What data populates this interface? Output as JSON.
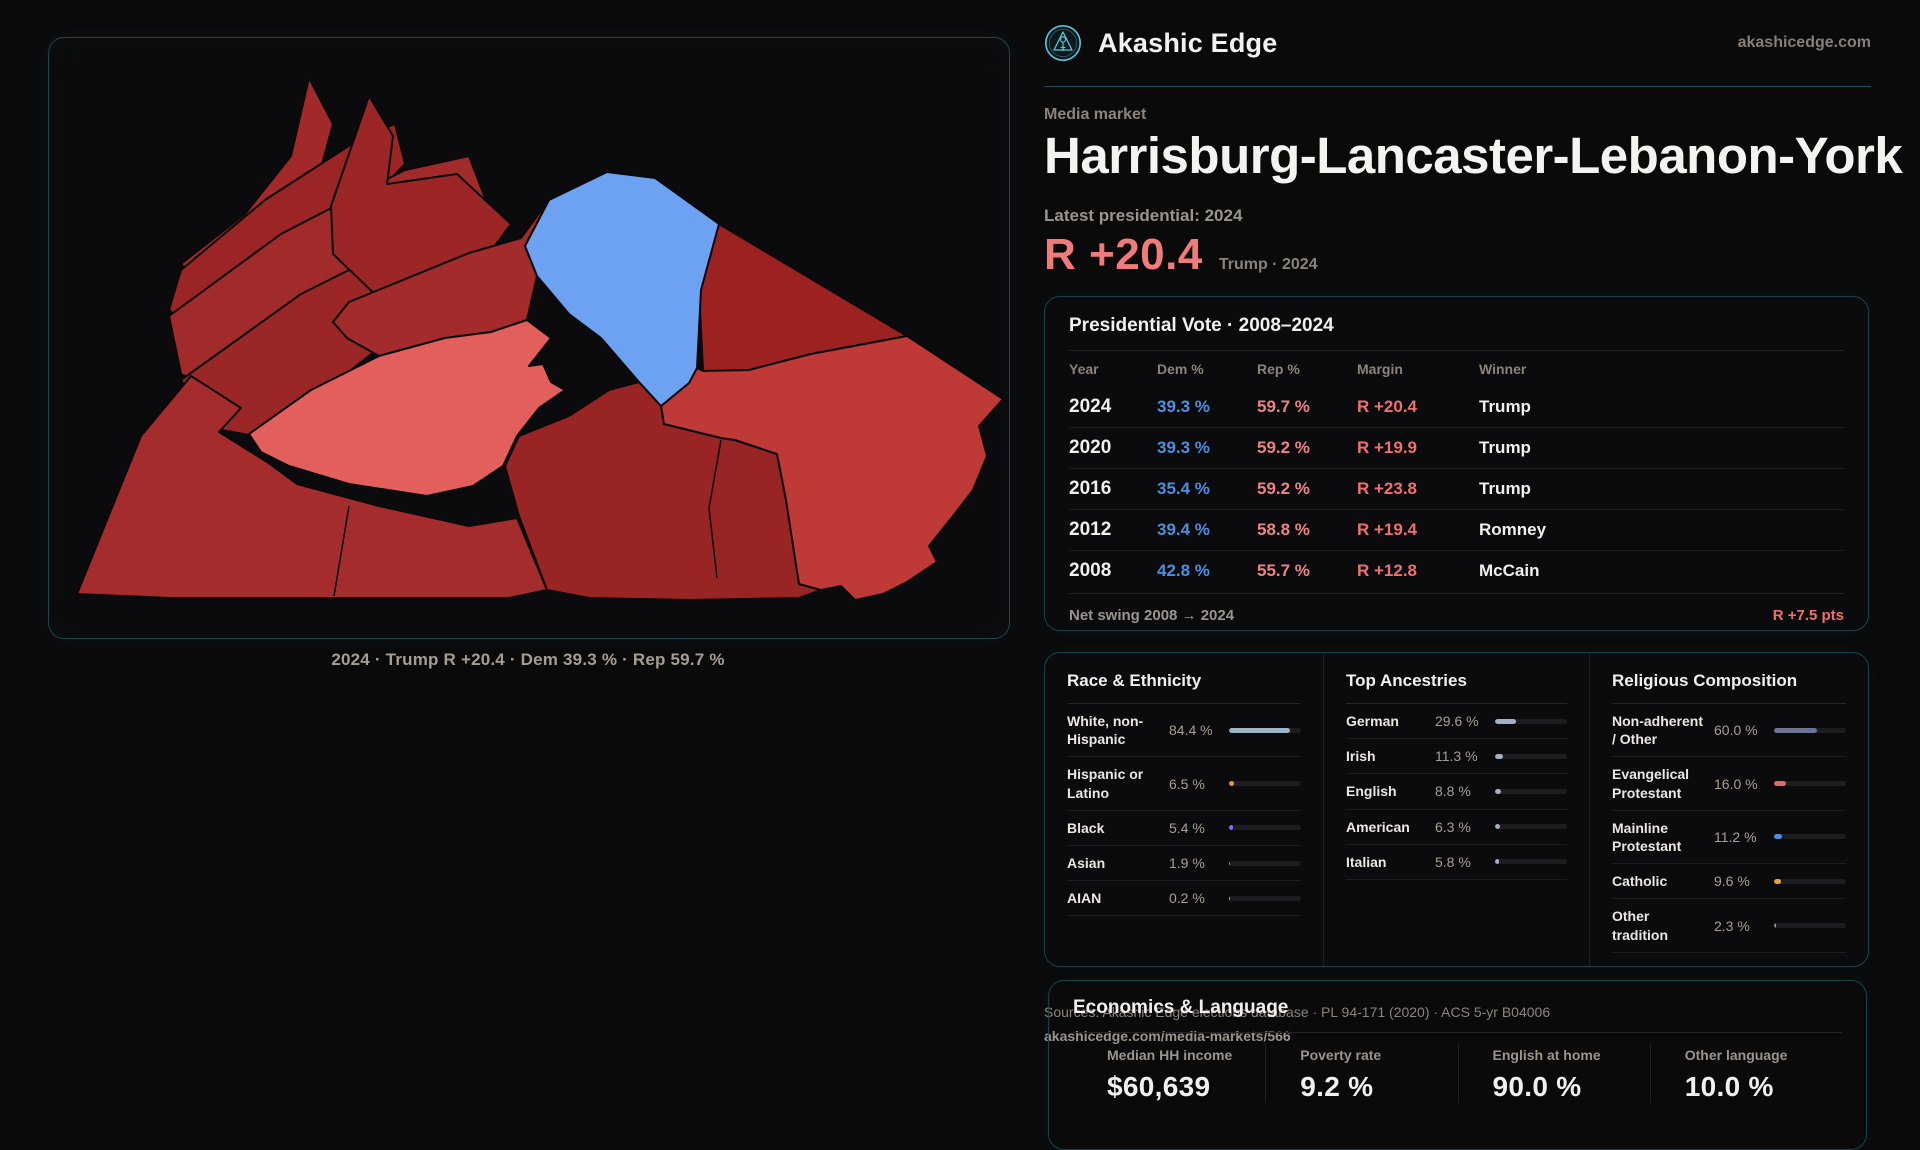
{
  "header": {
    "brand": "Akashic Edge",
    "site": "akashicedge.com"
  },
  "subject": {
    "kicker": "Media market",
    "title": "Harrisburg-Lancaster-Lebanon-York",
    "latest_label": "Latest presidential: 2024",
    "headline_margin": "R +20.4",
    "headline_sub": "Trump · 2024"
  },
  "map": {
    "caption": "2024 · Trump R +20.4 · Dem 39.3 % · Rep 59.7 %",
    "dem_color": "#6da1f2",
    "rep_strong_color": "#9e2727",
    "rep_lean_color": "#e25f5c"
  },
  "vote_table": {
    "title": "Presidential Vote · 2008–2024",
    "columns": [
      "Year",
      "Dem %",
      "Rep %",
      "Margin",
      "Winner"
    ],
    "rows": [
      {
        "year": "2024",
        "dem": "39.3 %",
        "rep": "59.7 %",
        "margin": "R +20.4",
        "winner": "Trump"
      },
      {
        "year": "2020",
        "dem": "39.3 %",
        "rep": "59.2 %",
        "margin": "R +19.9",
        "winner": "Trump"
      },
      {
        "year": "2016",
        "dem": "35.4 %",
        "rep": "59.2 %",
        "margin": "R +23.8",
        "winner": "Trump"
      },
      {
        "year": "2012",
        "dem": "39.4 %",
        "rep": "58.8 %",
        "margin": "R +19.4",
        "winner": "Romney"
      },
      {
        "year": "2008",
        "dem": "42.8 %",
        "rep": "55.7 %",
        "margin": "R +12.8",
        "winner": "McCain"
      }
    ],
    "net_swing_label": "Net swing 2008 → 2024",
    "net_swing_value": "R +7.5 pts"
  },
  "demographics": {
    "race": {
      "title": "Race & Ethnicity",
      "rows": [
        {
          "label": "White, non-Hispanic",
          "value": "84.4 %",
          "pct": 84.4,
          "color": "#9fb2c6"
        },
        {
          "label": "Hispanic or Latino",
          "value": "6.5 %",
          "pct": 6.5,
          "color": "#e39a3b"
        },
        {
          "label": "Black",
          "value": "5.4 %",
          "pct": 5.4,
          "color": "#7f71ee"
        },
        {
          "label": "Asian",
          "value": "1.9 %",
          "pct": 1.9,
          "color": "#2ec48e"
        },
        {
          "label": "AIAN",
          "value": "0.2 %",
          "pct": 0.2,
          "color": "#9fb2c6"
        }
      ]
    },
    "ancestries": {
      "title": "Top Ancestries",
      "rows": [
        {
          "label": "German",
          "value": "29.6 %",
          "pct": 29.6,
          "color": "#9fb2c6"
        },
        {
          "label": "Irish",
          "value": "11.3 %",
          "pct": 11.3,
          "color": "#9fb2c6"
        },
        {
          "label": "English",
          "value": "8.8 %",
          "pct": 8.8,
          "color": "#9fb2c6"
        },
        {
          "label": "American",
          "value": "6.3 %",
          "pct": 6.3,
          "color": "#9fb2c6"
        },
        {
          "label": "Italian",
          "value": "5.8 %",
          "pct": 5.8,
          "color": "#9fb2c6"
        }
      ]
    },
    "religion": {
      "title": "Religious Composition",
      "rows": [
        {
          "label": "Non-adherent / Other",
          "value": "60.0 %",
          "pct": 60.0,
          "color": "#6b7590"
        },
        {
          "label": "Evangelical Protestant",
          "value": "16.0 %",
          "pct": 16.0,
          "color": "#dd6a6a"
        },
        {
          "label": "Mainline Protestant",
          "value": "11.2 %",
          "pct": 11.2,
          "color": "#4e8fe2"
        },
        {
          "label": "Catholic",
          "value": "9.6 %",
          "pct": 9.6,
          "color": "#e2a930"
        },
        {
          "label": "Other tradition",
          "value": "2.3 %",
          "pct": 2.3,
          "color": "#8a8a8a"
        }
      ]
    }
  },
  "economics": {
    "title": "Economics & Language",
    "stats": [
      {
        "label": "Median HH income",
        "value": "$60,639"
      },
      {
        "label": "Poverty rate",
        "value": "9.2 %"
      },
      {
        "label": "English at home",
        "value": "90.0 %"
      },
      {
        "label": "Other language",
        "value": "10.0 %"
      }
    ]
  },
  "footer": {
    "line1": "Sources: Akashic Edge elections database · PL 94-171 (2020) · ACS 5-yr B04006",
    "line2": "akashicedge.com/media-markets/566"
  },
  "colors": {
    "accent_teal": "#4ecbe0",
    "dem_blue": "#4b8fe0",
    "rep_red": "#ee8383",
    "margin_red": "#ef6f6f",
    "headline_red": "#f17b7b"
  }
}
